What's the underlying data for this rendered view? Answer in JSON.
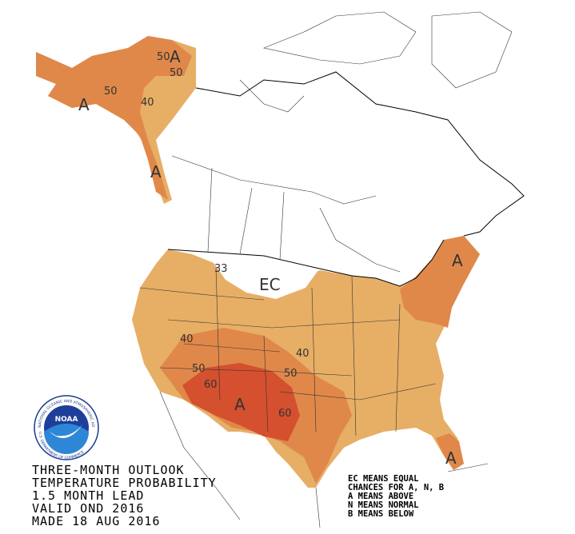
{
  "title_block": {
    "lines": [
      "THREE-MONTH OUTLOOK",
      "TEMPERATURE PROBABILITY",
      "1.5 MONTH LEAD",
      "VALID OND 2016",
      "MADE 18 AUG 2016"
    ]
  },
  "legend": {
    "lines": [
      "EC MEANS EQUAL",
      "CHANCES FOR A, N, B",
      "A MEANS ABOVE",
      "N MEANS NORMAL",
      "B MEANS BELOW"
    ]
  },
  "map_labels": [
    "50",
    "A",
    "50",
    "50",
    "40",
    "A",
    "A",
    "33",
    "EC",
    "A",
    "40",
    "40",
    "50",
    "50",
    "60",
    "A",
    "60",
    "A"
  ],
  "logo": {
    "text": "NOAA",
    "ring_top": "NATIONAL OCEANIC AND ATMOSPHERIC ADMINISTRATION",
    "ring_bottom": "U.S. DEPARTMENT OF COMMERCE"
  }
}
